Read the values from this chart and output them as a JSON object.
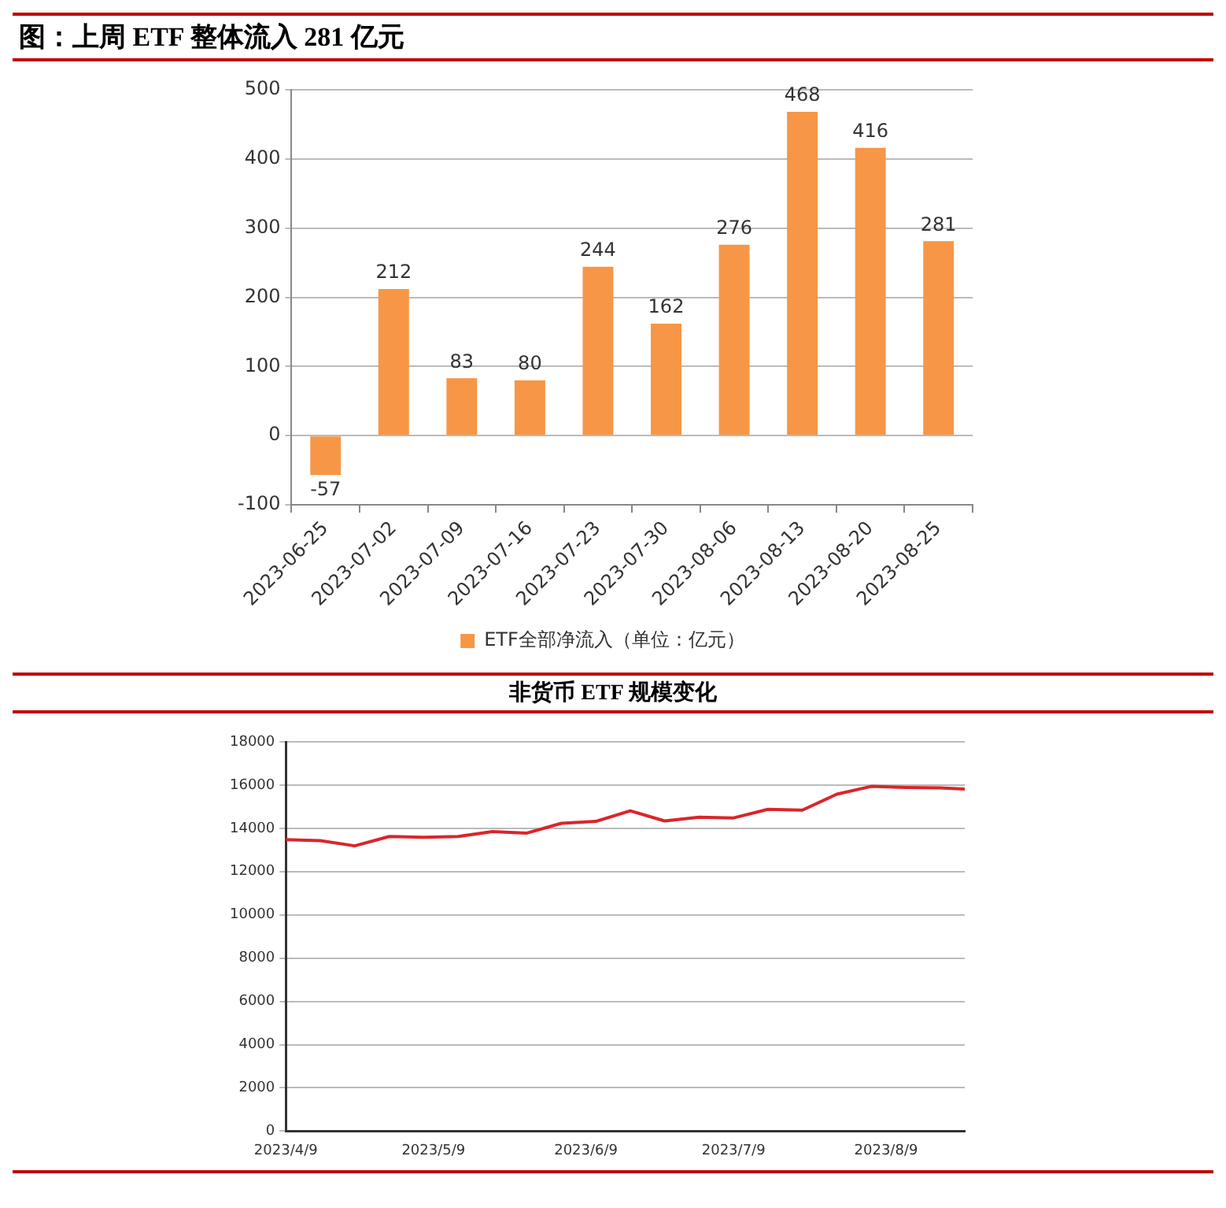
{
  "chart_data": [
    {
      "type": "bar",
      "title": "图：上周 ETF 整体流入 281 亿元",
      "categories": [
        "2023-06-25",
        "2023-07-02",
        "2023-07-09",
        "2023-07-16",
        "2023-07-23",
        "2023-07-30",
        "2023-08-06",
        "2023-08-13",
        "2023-08-20",
        "2023-08-25"
      ],
      "series": [
        {
          "name": "ETF全部净流入（单位：亿元）",
          "color": "#f79646",
          "values": [
            -57,
            212,
            83,
            80,
            244,
            162,
            276,
            468,
            416,
            281
          ]
        }
      ],
      "ylim": [
        -100,
        500
      ],
      "yticks": [
        -100,
        0,
        100,
        200,
        300,
        400,
        500
      ],
      "grid": "y",
      "legend": "bottom",
      "data_labels": true
    },
    {
      "type": "line",
      "title": "非货币 ETF 规模变化",
      "x": [
        "2023-04-09",
        "2023-04-16",
        "2023-04-23",
        "2023-04-30",
        "2023-05-07",
        "2023-05-14",
        "2023-05-21",
        "2023-05-28",
        "2023-06-04",
        "2023-06-11",
        "2023-06-18",
        "2023-06-25",
        "2023-07-02",
        "2023-07-09",
        "2023-07-16",
        "2023-07-23",
        "2023-07-30",
        "2023-08-06",
        "2023-08-13",
        "2023-08-20",
        "2023-08-25"
      ],
      "series": [
        {
          "color": "#d9262b",
          "values": [
            13480,
            13430,
            13190,
            13620,
            13590,
            13620,
            13850,
            13780,
            14230,
            14320,
            14810,
            14340,
            14510,
            14480,
            14880,
            14840,
            15580,
            15940,
            15890,
            15870,
            15820
          ]
        }
      ],
      "xlim": [
        "2023-04-09",
        "2023-08-25"
      ],
      "xticks": [
        {
          "value": "2023-04-09",
          "label": "2023/4/9"
        },
        {
          "value": "2023-05-09",
          "label": "2023/5/9"
        },
        {
          "value": "2023-06-09",
          "label": "2023/6/9"
        },
        {
          "value": "2023-07-09",
          "label": "2023/7/9"
        },
        {
          "value": "2023-08-09",
          "label": "2023/8/9"
        }
      ],
      "ylim": [
        0,
        18000
      ],
      "yticks": [
        0,
        2000,
        4000,
        6000,
        8000,
        10000,
        12000,
        14000,
        16000,
        18000
      ],
      "grid": "y",
      "marker": "none"
    }
  ]
}
